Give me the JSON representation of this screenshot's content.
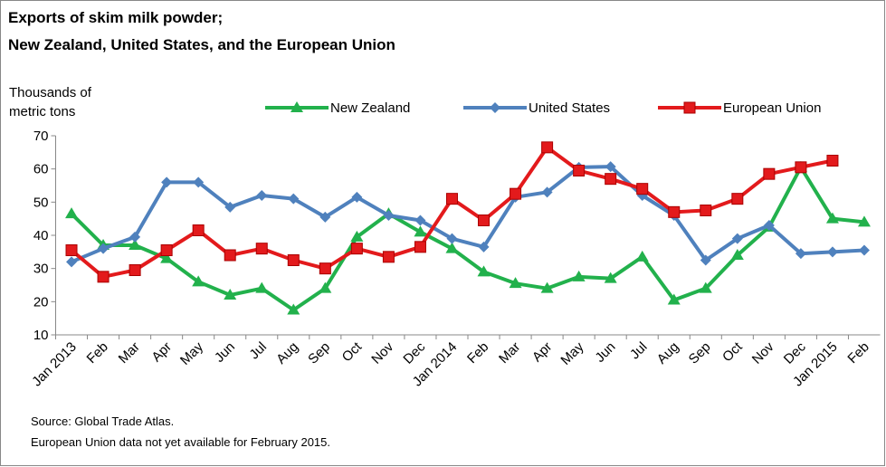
{
  "chart_data": {
    "type": "line",
    "title": "Exports of skim milk powder;",
    "subtitle": "New Zealand, United States, and the European Union",
    "ylabel": "Thousands of metric tons",
    "notes": [
      "Source: Global Trade Atlas.",
      "European Union data not yet available for February 2015."
    ],
    "categories": [
      "Jan 2013",
      "Feb",
      "Mar",
      "Apr",
      "May",
      "Jun",
      "Jul",
      "Aug",
      "Sep",
      "Oct",
      "Nov",
      "Dec",
      "Jan 2014",
      "Feb",
      "Mar",
      "Apr",
      "May",
      "Jun",
      "Jul",
      "Aug",
      "Sep",
      "Oct",
      "Nov",
      "Dec",
      "Jan 2015",
      "Feb"
    ],
    "ylim": [
      10,
      70
    ],
    "yticks": [
      10,
      20,
      30,
      40,
      50,
      60,
      70
    ],
    "series": [
      {
        "name": "New Zealand",
        "color": "#22b14c",
        "marker": "triangle",
        "values": [
          46.5,
          37,
          37,
          33,
          26,
          22,
          24,
          17.5,
          24,
          39.5,
          46.5,
          41,
          36,
          29,
          25.5,
          24,
          27.5,
          27,
          33.5,
          20.5,
          24,
          34,
          42.5,
          60.5,
          45,
          44
        ]
      },
      {
        "name": "United States",
        "color": "#4f81bd",
        "marker": "diamond",
        "values": [
          32,
          36,
          39.5,
          56,
          56,
          48.5,
          52,
          51,
          45.5,
          51.5,
          46,
          44.5,
          39,
          36.5,
          51.5,
          53,
          60.5,
          60.7,
          52,
          46,
          32.5,
          39,
          43,
          34.5,
          35,
          35.5
        ]
      },
      {
        "name": "European Union",
        "color": "#e31a1c",
        "marker": "square",
        "values": [
          35.5,
          27.5,
          29.5,
          35.5,
          41.5,
          34,
          36,
          32.5,
          30,
          36,
          33.5,
          36.5,
          51,
          44.5,
          52.5,
          66.5,
          59.5,
          57,
          54,
          47,
          47.5,
          51,
          58.5,
          60.5,
          62.5,
          null
        ]
      }
    ]
  }
}
